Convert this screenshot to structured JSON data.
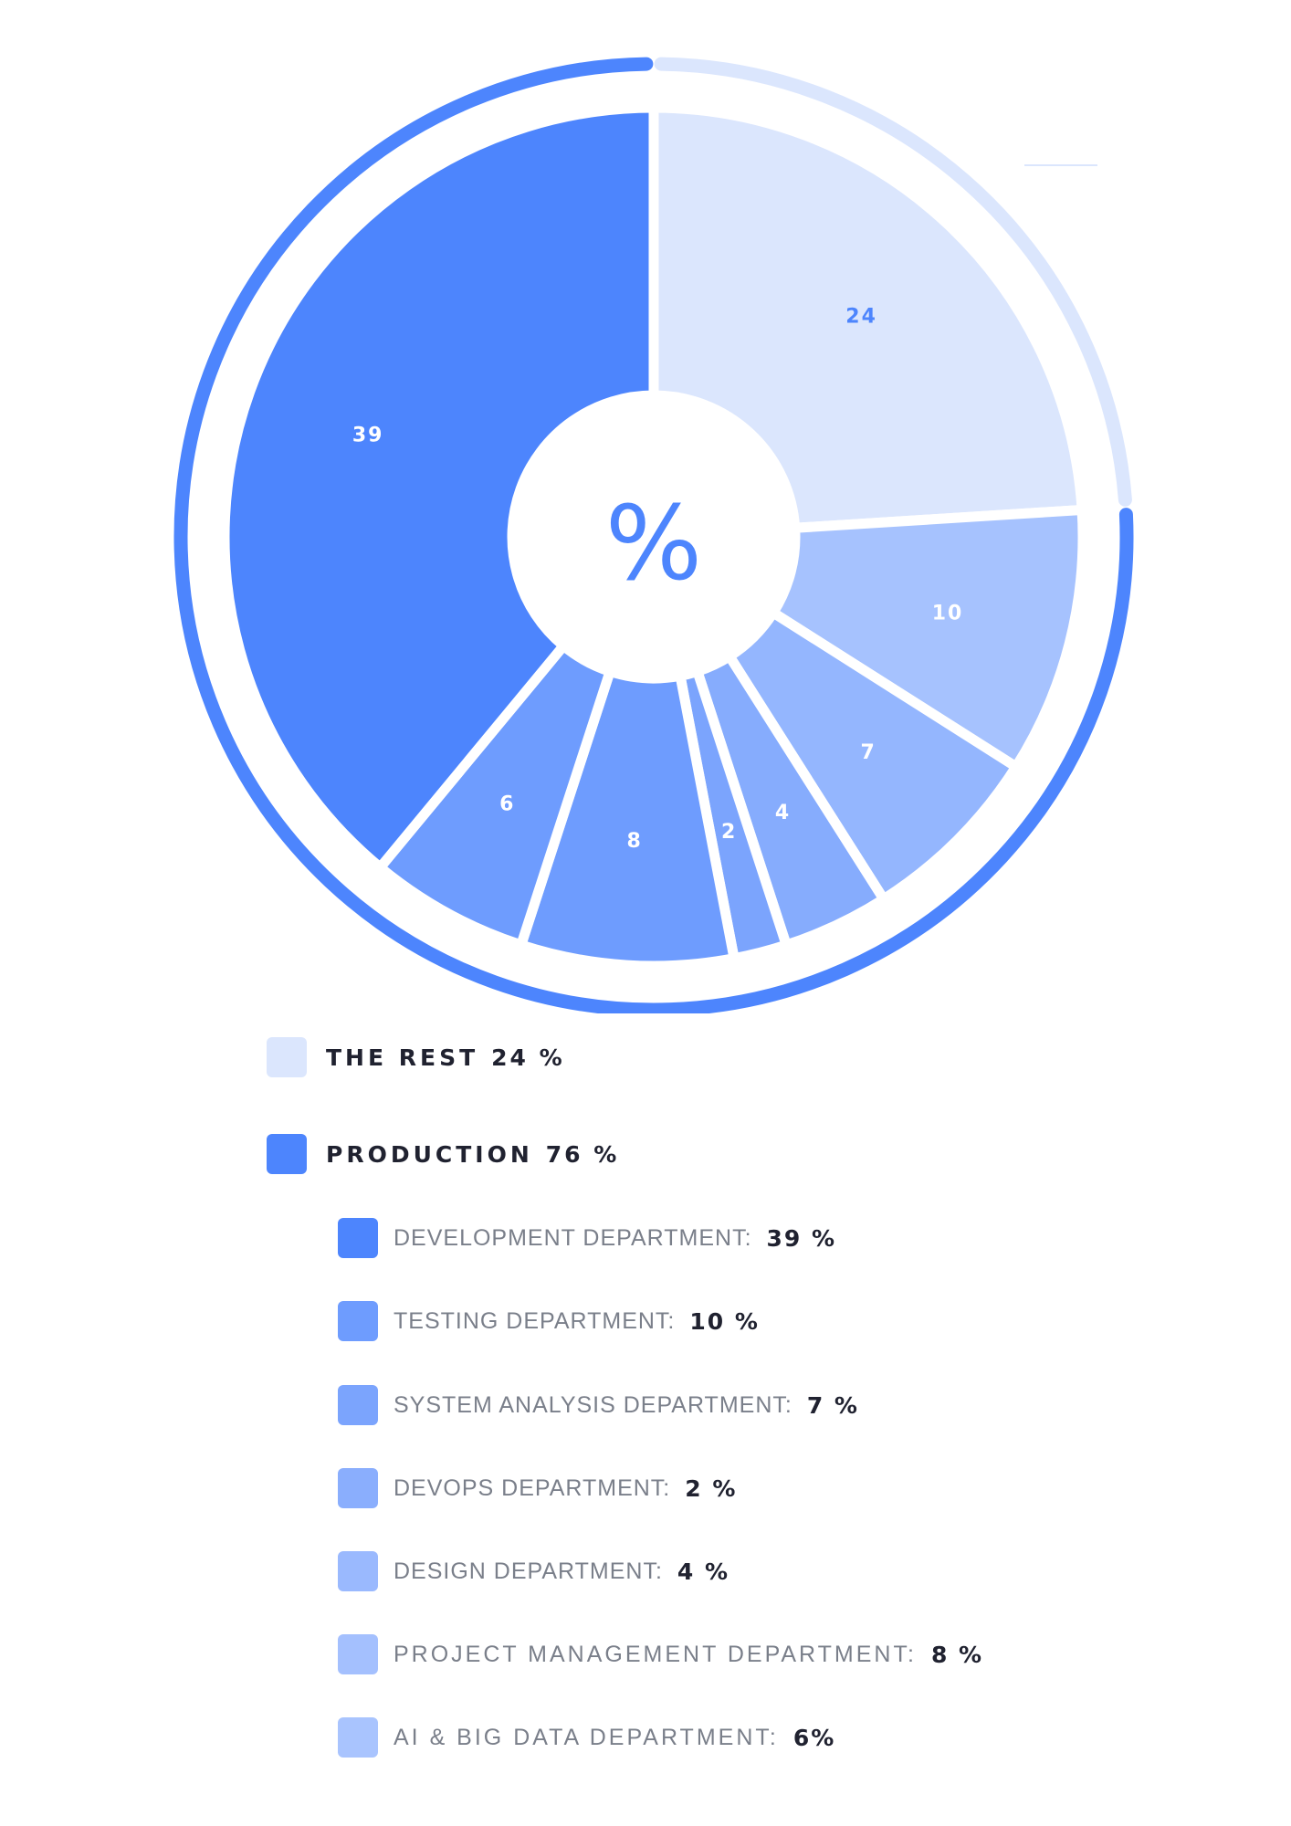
{
  "chart_data": {
    "type": "pie",
    "center_symbol": "%",
    "slices": [
      {
        "label": "24",
        "value": 24,
        "color": "#dbe6fd",
        "label_color": "#4d85fd",
        "group": "rest"
      },
      {
        "label": "10",
        "value": 10,
        "color": "#a6c2fe",
        "label_color": "#ffffff",
        "group": "production"
      },
      {
        "label": "7",
        "value": 7,
        "color": "#94b6fe",
        "label_color": "#ffffff",
        "group": "production"
      },
      {
        "label": "4",
        "value": 4,
        "color": "#86acfd",
        "label_color": "#ffffff",
        "group": "production"
      },
      {
        "label": "2",
        "value": 2,
        "color": "#7ba4fd",
        "label_color": "#ffffff",
        "group": "production"
      },
      {
        "label": "8",
        "value": 8,
        "color": "#6e9cfe",
        "label_color": "#ffffff",
        "group": "production"
      },
      {
        "label": "6",
        "value": 6,
        "color": "#6e9cfe",
        "label_color": "#ffffff",
        "group": "production"
      },
      {
        "label": "39",
        "value": 39,
        "color": "#4d85fd",
        "label_color": "#ffffff",
        "group": "production"
      }
    ],
    "outer_arcs": [
      {
        "group": "rest",
        "value": 24,
        "color": "#dbe6fd"
      },
      {
        "group": "production",
        "value": 76,
        "color": "#4d85fd"
      }
    ]
  },
  "legend": {
    "groups": [
      {
        "label": "THE REST",
        "value": "24 %",
        "color": "#dbe6fd"
      },
      {
        "label": "PRODUCTION",
        "value": "76 %",
        "color": "#4d85fd"
      }
    ],
    "items": [
      {
        "label": "DEVELOPMENT DEPARTMENT:",
        "value": "39 %",
        "color": "#4d85fd"
      },
      {
        "label": "TESTING DEPARTMENT:",
        "value": "10 %",
        "color": "#6e9cfe"
      },
      {
        "label": "SYSTEM ANALYSIS DEPARTMENT:",
        "value": "7 %",
        "color": "#7ba4fd"
      },
      {
        "label": "DEVOPS DEPARTMENT:",
        "value": "2 %",
        "color": "#8aaefd"
      },
      {
        "label": "DESIGN DEPARTMENT:",
        "value": "4 %",
        "color": "#9ab9fe"
      },
      {
        "label": "PROJECT MANAGEMENT DEPARTMENT:",
        "value": "8 %",
        "color": "#a4c0fe"
      },
      {
        "label": "AI & BIG DATA DEPARTMENT:",
        "value": "6%",
        "color": "#a9c4fe"
      }
    ]
  }
}
